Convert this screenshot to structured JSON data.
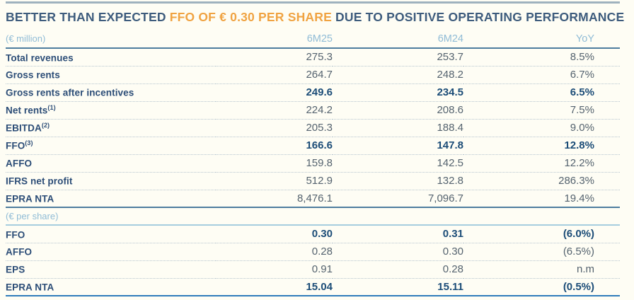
{
  "title": {
    "part1": "BETTER THAN EXPECTED ",
    "highlight": "FFO OF € 0.30 PER SHARE",
    "part2": " DUE TO POSITIVE OPERATING PERFORMANCE"
  },
  "colors": {
    "title_navy": "#3e5c7d",
    "accent_orange": "#f0a342",
    "column_header_blue": "#90bcd6",
    "row_label_navy": "#2c4d77",
    "value_gray": "#55636f",
    "bold_value_navy": "#1b4c77",
    "section_line_steel": "#4e7d9e",
    "section_line_light": "#a6cede",
    "bottom_line_blue": "#2f7cbb",
    "top_rule_gray": "#9fb2be"
  },
  "table": {
    "columns": {
      "unit_million": "(€ million)",
      "col_6m25": "6M25",
      "col_6m24": "6M24",
      "col_yoy": "YoY"
    },
    "unit_per_share": "(€ per share)",
    "million_rows": [
      {
        "label": "Total revenues",
        "sup": "",
        "v6m25": "275.3",
        "v6m24": "253.7",
        "yoy": "8.5%"
      },
      {
        "label": "Gross rents",
        "sup": "",
        "v6m25": "264.7",
        "v6m24": "248.2",
        "yoy": "6.7%"
      },
      {
        "label": "Gross rents after incentives",
        "sup": "",
        "v6m25": "249.6",
        "v6m24": "234.5",
        "yoy": "6.5%"
      },
      {
        "label": "Net rents",
        "sup": "(1)",
        "v6m25": "224.2",
        "v6m24": "208.6",
        "yoy": "7.5%"
      },
      {
        "label": "EBITDA",
        "sup": "(2)",
        "v6m25": "205.3",
        "v6m24": "188.4",
        "yoy": "9.0%"
      },
      {
        "label": "FFO",
        "sup": "(3)",
        "v6m25": "166.6",
        "v6m24": "147.8",
        "yoy": "12.8%"
      },
      {
        "label": "AFFO",
        "sup": "",
        "v6m25": "159.8",
        "v6m24": "142.5",
        "yoy": "12.2%"
      },
      {
        "label": "IFRS net profit",
        "sup": "",
        "v6m25": "512.9",
        "v6m24": "132.8",
        "yoy": "286.3%"
      },
      {
        "label": "EPRA NTA",
        "sup": "",
        "v6m25": "8,476.1",
        "v6m24": "7,096.7",
        "yoy": "19.4%"
      }
    ],
    "per_share_rows": [
      {
        "label": "FFO",
        "sup": "",
        "v6m25": "0.30",
        "v6m24": "0.31",
        "yoy": "(6.0%)"
      },
      {
        "label": "AFFO",
        "sup": "",
        "v6m25": "0.28",
        "v6m24": "0.30",
        "yoy": "(6.5%)"
      },
      {
        "label": "EPS",
        "sup": "",
        "v6m25": "0.91",
        "v6m24": "0.28",
        "yoy": "n.m"
      },
      {
        "label": "EPRA NTA",
        "sup": "",
        "v6m25": "15.04",
        "v6m24": "15.11",
        "yoy": "(0.5%)"
      }
    ]
  }
}
